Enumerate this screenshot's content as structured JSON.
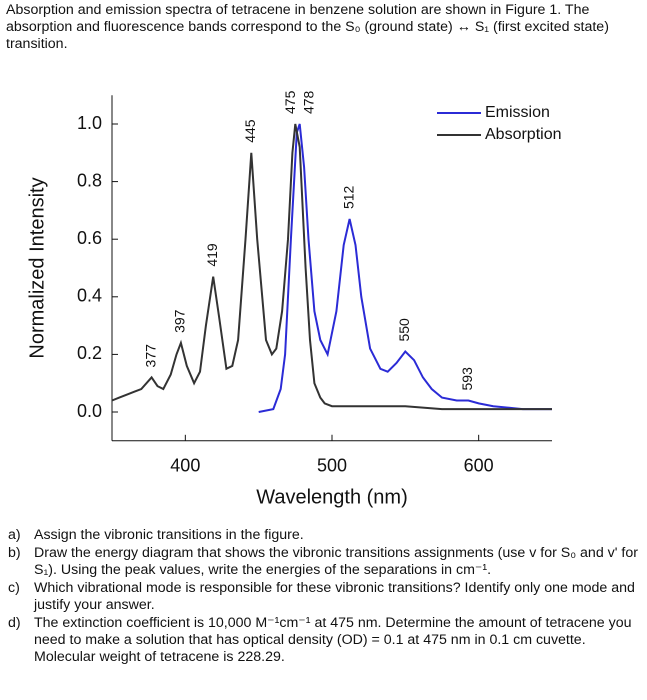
{
  "intro": "Absorption and emission spectra of tetracene in benzene solution are shown in Figure 1. The absorption and fluorescence bands correspond to the S₀ (ground state) ↔ S₁ (first excited state) transition.",
  "chart_data": {
    "type": "line",
    "x_label": "Wavelength (nm)",
    "y_label": "Normalized Intensity",
    "xlim": [
      350,
      650
    ],
    "ylim": [
      -0.1,
      1.1
    ],
    "xticks": [
      400,
      500,
      600
    ],
    "yticks": [
      {
        "value": 0,
        "label": "0.0"
      },
      0.2,
      0.4,
      0.6,
      0.8,
      {
        "value": 1,
        "label": "1.0"
      }
    ],
    "legend": "upper right",
    "series": [
      {
        "name": "Emission",
        "color": "#2b2bd6",
        "x": [
          450,
          460,
          465,
          468,
          472,
          476,
          478,
          481,
          484,
          488,
          492,
          497,
          503,
          508,
          512,
          516,
          520,
          526,
          533,
          538,
          544,
          550,
          556,
          562,
          568,
          575,
          585,
          593,
          600,
          610,
          630,
          650
        ],
        "values": [
          0.0,
          0.01,
          0.08,
          0.2,
          0.6,
          0.97,
          1.0,
          0.85,
          0.6,
          0.35,
          0.25,
          0.2,
          0.35,
          0.58,
          0.67,
          0.58,
          0.4,
          0.22,
          0.15,
          0.14,
          0.17,
          0.21,
          0.18,
          0.12,
          0.08,
          0.05,
          0.04,
          0.04,
          0.03,
          0.02,
          0.01,
          0.01
        ]
      },
      {
        "name": "Absorption",
        "color": "#333333",
        "x": [
          350,
          355,
          360,
          365,
          370,
          377,
          381,
          385,
          390,
          394,
          397,
          401,
          406,
          410,
          414,
          419,
          423,
          428,
          432,
          436,
          441,
          445,
          449,
          455,
          459,
          462,
          466,
          470,
          473,
          475,
          478,
          482,
          485,
          488,
          492,
          495,
          500,
          510,
          530,
          550,
          575,
          600,
          625,
          650
        ],
        "values": [
          0.04,
          0.05,
          0.06,
          0.07,
          0.08,
          0.12,
          0.09,
          0.08,
          0.13,
          0.2,
          0.24,
          0.16,
          0.1,
          0.14,
          0.3,
          0.47,
          0.33,
          0.15,
          0.16,
          0.25,
          0.6,
          0.9,
          0.6,
          0.25,
          0.2,
          0.22,
          0.35,
          0.6,
          0.9,
          1.0,
          0.92,
          0.5,
          0.25,
          0.1,
          0.05,
          0.03,
          0.02,
          0.02,
          0.02,
          0.02,
          0.01,
          0.01,
          0.01,
          0.01
        ]
      }
    ],
    "peak_labels": [
      377,
      397,
      419,
      445,
      475,
      478,
      512,
      550,
      593
    ]
  },
  "questions": [
    {
      "label": "a)",
      "text": "Assign the vibronic transitions in the figure."
    },
    {
      "label": "b)",
      "text": "Draw the energy diagram that shows the vibronic transitions assignments (use v for S₀ and v' for S₁). Using the peak values, write the energies of the separations in cm⁻¹."
    },
    {
      "label": "c)",
      "text": "Which vibrational mode is responsible for these vibronic transitions? Identify only one mode and justify your answer."
    },
    {
      "label": "d)",
      "text": "The extinction coefficient is 10,000 M⁻¹cm⁻¹ at 475 nm. Determine the amount of tetracene you need to make a solution that has optical density (OD) = 0.1 at 475 nm in 0.1 cm cuvette. Molecular weight of tetracene is 228.29."
    }
  ]
}
